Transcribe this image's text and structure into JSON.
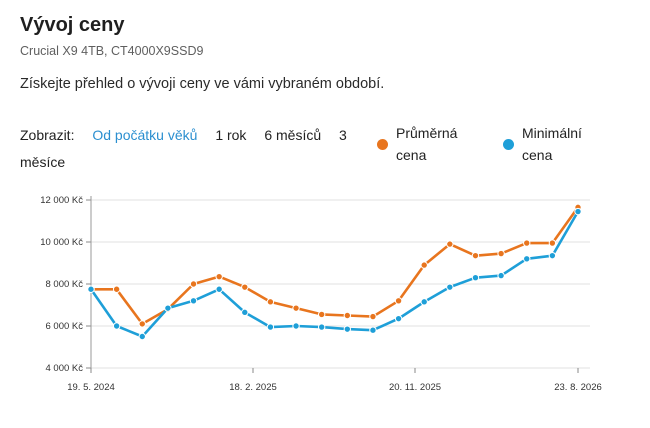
{
  "header": {
    "title": "Vývoj ceny",
    "product": "Crucial X9 4TB, CT4000X9SSD9",
    "intro": "Získejte přehled o vývoji ceny ve vámi vybraném období."
  },
  "filters": {
    "label": "Zobrazit:",
    "options": [
      {
        "label": "Od počátku věků",
        "active": true
      },
      {
        "label": "1 rok",
        "active": false
      },
      {
        "label": "6 měsíců",
        "active": false
      },
      {
        "label": "3 měsíce",
        "active": false
      }
    ]
  },
  "legend": {
    "average": {
      "label": "Průměrná cena",
      "color": "#e8751e"
    },
    "minimum": {
      "label": "Minimální cena",
      "color": "#1e9fd8"
    }
  },
  "chart_data": {
    "type": "line",
    "y_ticks": [
      "4 000 Kč",
      "6 000 Kč",
      "8 000 Kč",
      "10 000 Kč",
      "12 000 Kč"
    ],
    "y_tick_values": [
      4000,
      6000,
      8000,
      10000,
      12000
    ],
    "x_ticks": [
      "19. 5. 2024",
      "18. 2. 2025",
      "20. 11. 2025",
      "23. 8. 2026"
    ],
    "ylim": [
      4000,
      12000
    ],
    "grid": "horizontal",
    "series": [
      {
        "name": "Průměrná cena",
        "color": "#e8751e",
        "values": [
          7750,
          7750,
          6100,
          6800,
          8000,
          8350,
          7850,
          7150,
          6850,
          6550,
          6500,
          6450,
          7200,
          8900,
          9900,
          9350,
          9450,
          9950,
          9950,
          11650
        ]
      },
      {
        "name": "Minimální cena",
        "color": "#1e9fd8",
        "values": [
          7750,
          6000,
          5500,
          6850,
          7200,
          7750,
          6650,
          5950,
          6000,
          5950,
          5850,
          5800,
          6350,
          7150,
          7850,
          8300,
          8400,
          9200,
          9350,
          11450
        ]
      }
    ]
  }
}
